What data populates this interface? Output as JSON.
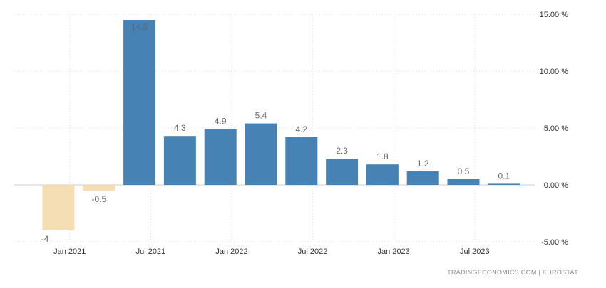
{
  "chart_data": {
    "type": "bar",
    "categories": [
      "Q1 2021",
      "Q2 2021",
      "Q3 2021",
      "Q4 2021",
      "Q1 2022",
      "Q2 2022",
      "Q3 2022",
      "Q4 2022",
      "Q1 2023",
      "Q2 2023",
      "Q3 2023",
      "Q4 2023"
    ],
    "values": [
      -4,
      -0.5,
      14.5,
      4.3,
      4.9,
      5.4,
      4.2,
      2.3,
      1.8,
      1.2,
      0.5,
      0.1
    ],
    "value_labels": [
      "-4",
      "-0.5",
      "14.5",
      "4.3",
      "4.9",
      "5.4",
      "4.2",
      "2.3",
      "1.8",
      "1.2",
      "0.5",
      "0.1"
    ],
    "x_ticks": [
      {
        "label": "Jan 2021",
        "category_index": 0
      },
      {
        "label": "Jul 2021",
        "category_index": 2
      },
      {
        "label": "Jan 2022",
        "category_index": 4
      },
      {
        "label": "Jul 2022",
        "category_index": 6
      },
      {
        "label": "Jan 2023",
        "category_index": 8
      },
      {
        "label": "Jul 2023",
        "category_index": 10
      }
    ],
    "y_ticks": [
      {
        "value": 15,
        "label": "15.00 %"
      },
      {
        "value": 10,
        "label": "10.00 %"
      },
      {
        "value": 5,
        "label": "5.00 %"
      },
      {
        "value": 0,
        "label": "0.00 %"
      },
      {
        "value": -5,
        "label": "-5.00 %"
      }
    ],
    "ylim": [
      -5,
      15
    ],
    "y_axis_position": "right",
    "grid": true,
    "positive_color": "#4682b4",
    "negative_color": "#f5deb3",
    "title": "",
    "xlabel": "",
    "ylabel": ""
  },
  "source": {
    "text": "TRADINGECONOMICS.COM  |  EUROSTAT"
  }
}
